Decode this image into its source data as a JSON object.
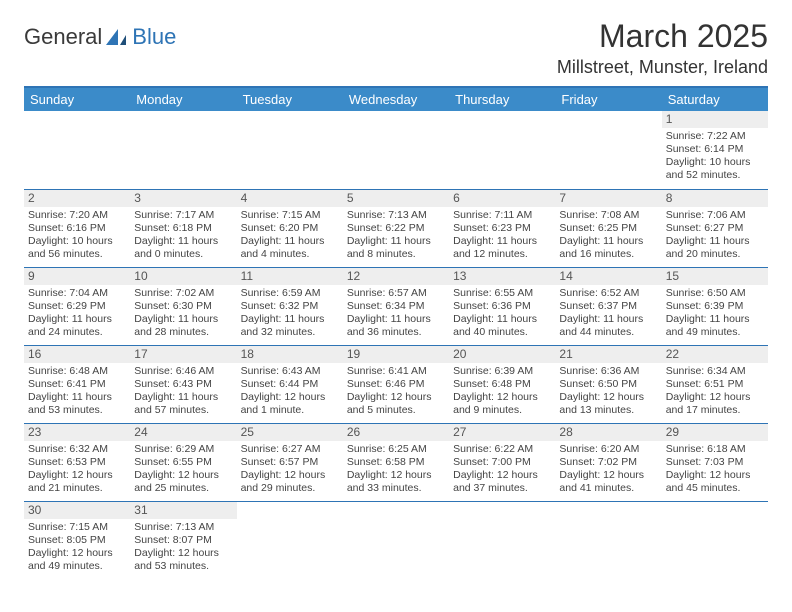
{
  "brand": {
    "name1": "General",
    "name2": "Blue"
  },
  "title": "March 2025",
  "location": "Millstreet, Munster, Ireland",
  "colors": {
    "header_bg": "#3b8bc9",
    "header_text": "#ffffff",
    "border": "#2e74b5",
    "daynum_bg": "#eeeeee",
    "text": "#444444"
  },
  "day_headers": [
    "Sunday",
    "Monday",
    "Tuesday",
    "Wednesday",
    "Thursday",
    "Friday",
    "Saturday"
  ],
  "weeks": [
    [
      {
        "n": "",
        "sr": "",
        "ss": "",
        "dl": ""
      },
      {
        "n": "",
        "sr": "",
        "ss": "",
        "dl": ""
      },
      {
        "n": "",
        "sr": "",
        "ss": "",
        "dl": ""
      },
      {
        "n": "",
        "sr": "",
        "ss": "",
        "dl": ""
      },
      {
        "n": "",
        "sr": "",
        "ss": "",
        "dl": ""
      },
      {
        "n": "",
        "sr": "",
        "ss": "",
        "dl": ""
      },
      {
        "n": "1",
        "sr": "Sunrise: 7:22 AM",
        "ss": "Sunset: 6:14 PM",
        "dl": "Daylight: 10 hours and 52 minutes."
      }
    ],
    [
      {
        "n": "2",
        "sr": "Sunrise: 7:20 AM",
        "ss": "Sunset: 6:16 PM",
        "dl": "Daylight: 10 hours and 56 minutes."
      },
      {
        "n": "3",
        "sr": "Sunrise: 7:17 AM",
        "ss": "Sunset: 6:18 PM",
        "dl": "Daylight: 11 hours and 0 minutes."
      },
      {
        "n": "4",
        "sr": "Sunrise: 7:15 AM",
        "ss": "Sunset: 6:20 PM",
        "dl": "Daylight: 11 hours and 4 minutes."
      },
      {
        "n": "5",
        "sr": "Sunrise: 7:13 AM",
        "ss": "Sunset: 6:22 PM",
        "dl": "Daylight: 11 hours and 8 minutes."
      },
      {
        "n": "6",
        "sr": "Sunrise: 7:11 AM",
        "ss": "Sunset: 6:23 PM",
        "dl": "Daylight: 11 hours and 12 minutes."
      },
      {
        "n": "7",
        "sr": "Sunrise: 7:08 AM",
        "ss": "Sunset: 6:25 PM",
        "dl": "Daylight: 11 hours and 16 minutes."
      },
      {
        "n": "8",
        "sr": "Sunrise: 7:06 AM",
        "ss": "Sunset: 6:27 PM",
        "dl": "Daylight: 11 hours and 20 minutes."
      }
    ],
    [
      {
        "n": "9",
        "sr": "Sunrise: 7:04 AM",
        "ss": "Sunset: 6:29 PM",
        "dl": "Daylight: 11 hours and 24 minutes."
      },
      {
        "n": "10",
        "sr": "Sunrise: 7:02 AM",
        "ss": "Sunset: 6:30 PM",
        "dl": "Daylight: 11 hours and 28 minutes."
      },
      {
        "n": "11",
        "sr": "Sunrise: 6:59 AM",
        "ss": "Sunset: 6:32 PM",
        "dl": "Daylight: 11 hours and 32 minutes."
      },
      {
        "n": "12",
        "sr": "Sunrise: 6:57 AM",
        "ss": "Sunset: 6:34 PM",
        "dl": "Daylight: 11 hours and 36 minutes."
      },
      {
        "n": "13",
        "sr": "Sunrise: 6:55 AM",
        "ss": "Sunset: 6:36 PM",
        "dl": "Daylight: 11 hours and 40 minutes."
      },
      {
        "n": "14",
        "sr": "Sunrise: 6:52 AM",
        "ss": "Sunset: 6:37 PM",
        "dl": "Daylight: 11 hours and 44 minutes."
      },
      {
        "n": "15",
        "sr": "Sunrise: 6:50 AM",
        "ss": "Sunset: 6:39 PM",
        "dl": "Daylight: 11 hours and 49 minutes."
      }
    ],
    [
      {
        "n": "16",
        "sr": "Sunrise: 6:48 AM",
        "ss": "Sunset: 6:41 PM",
        "dl": "Daylight: 11 hours and 53 minutes."
      },
      {
        "n": "17",
        "sr": "Sunrise: 6:46 AM",
        "ss": "Sunset: 6:43 PM",
        "dl": "Daylight: 11 hours and 57 minutes."
      },
      {
        "n": "18",
        "sr": "Sunrise: 6:43 AM",
        "ss": "Sunset: 6:44 PM",
        "dl": "Daylight: 12 hours and 1 minute."
      },
      {
        "n": "19",
        "sr": "Sunrise: 6:41 AM",
        "ss": "Sunset: 6:46 PM",
        "dl": "Daylight: 12 hours and 5 minutes."
      },
      {
        "n": "20",
        "sr": "Sunrise: 6:39 AM",
        "ss": "Sunset: 6:48 PM",
        "dl": "Daylight: 12 hours and 9 minutes."
      },
      {
        "n": "21",
        "sr": "Sunrise: 6:36 AM",
        "ss": "Sunset: 6:50 PM",
        "dl": "Daylight: 12 hours and 13 minutes."
      },
      {
        "n": "22",
        "sr": "Sunrise: 6:34 AM",
        "ss": "Sunset: 6:51 PM",
        "dl": "Daylight: 12 hours and 17 minutes."
      }
    ],
    [
      {
        "n": "23",
        "sr": "Sunrise: 6:32 AM",
        "ss": "Sunset: 6:53 PM",
        "dl": "Daylight: 12 hours and 21 minutes."
      },
      {
        "n": "24",
        "sr": "Sunrise: 6:29 AM",
        "ss": "Sunset: 6:55 PM",
        "dl": "Daylight: 12 hours and 25 minutes."
      },
      {
        "n": "25",
        "sr": "Sunrise: 6:27 AM",
        "ss": "Sunset: 6:57 PM",
        "dl": "Daylight: 12 hours and 29 minutes."
      },
      {
        "n": "26",
        "sr": "Sunrise: 6:25 AM",
        "ss": "Sunset: 6:58 PM",
        "dl": "Daylight: 12 hours and 33 minutes."
      },
      {
        "n": "27",
        "sr": "Sunrise: 6:22 AM",
        "ss": "Sunset: 7:00 PM",
        "dl": "Daylight: 12 hours and 37 minutes."
      },
      {
        "n": "28",
        "sr": "Sunrise: 6:20 AM",
        "ss": "Sunset: 7:02 PM",
        "dl": "Daylight: 12 hours and 41 minutes."
      },
      {
        "n": "29",
        "sr": "Sunrise: 6:18 AM",
        "ss": "Sunset: 7:03 PM",
        "dl": "Daylight: 12 hours and 45 minutes."
      }
    ],
    [
      {
        "n": "30",
        "sr": "Sunrise: 7:15 AM",
        "ss": "Sunset: 8:05 PM",
        "dl": "Daylight: 12 hours and 49 minutes."
      },
      {
        "n": "31",
        "sr": "Sunrise: 7:13 AM",
        "ss": "Sunset: 8:07 PM",
        "dl": "Daylight: 12 hours and 53 minutes."
      },
      {
        "n": "",
        "sr": "",
        "ss": "",
        "dl": ""
      },
      {
        "n": "",
        "sr": "",
        "ss": "",
        "dl": ""
      },
      {
        "n": "",
        "sr": "",
        "ss": "",
        "dl": ""
      },
      {
        "n": "",
        "sr": "",
        "ss": "",
        "dl": ""
      },
      {
        "n": "",
        "sr": "",
        "ss": "",
        "dl": ""
      }
    ]
  ]
}
